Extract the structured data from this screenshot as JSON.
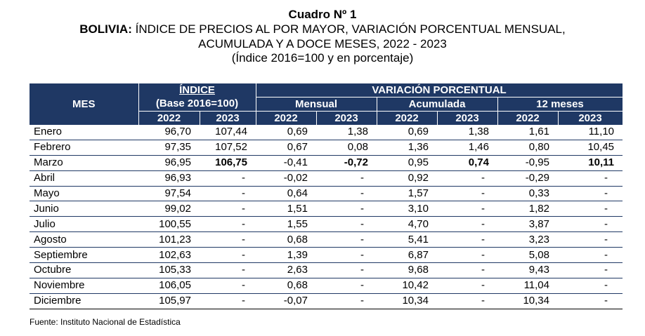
{
  "title": "Cuadro Nº 1",
  "subtitle_bold": "BOLIVIA:",
  "subtitle_rest": " ÍNDICE DE PRECIOS AL POR MAYOR, VARIACIÓN PORCENTUAL MENSUAL,",
  "subtitle_line2": "ACUMULADA Y A DOCE MESES, 2022 - 2023",
  "subtitle_line3": "(Índice 2016=100 y en porcentaje)",
  "header": {
    "mes": "MES",
    "indice": "ÍNDICE",
    "base": "(Base 2016=100)",
    "variacion": "VARIACIÓN PORCENTUAL",
    "mensual": "Mensual",
    "acumulada": "Acumulada",
    "doce_meses": "12 meses",
    "y2022": "2022",
    "y2023": "2023"
  },
  "rows": [
    {
      "mes": "Enero",
      "i22": "96,70",
      "i23": "107,44",
      "m22": "0,69",
      "m23": "1,38",
      "a22": "0,69",
      "a23": "1,38",
      "d22": "1,61",
      "d23": "11,10"
    },
    {
      "mes": "Febrero",
      "i22": "97,35",
      "i23": "107,52",
      "m22": "0,67",
      "m23": "0,08",
      "a22": "1,36",
      "a23": "1,46",
      "d22": "0,80",
      "d23": "10,45"
    },
    {
      "mes": "Marzo",
      "i22": "96,95",
      "i23": "106,75",
      "m22": "-0,41",
      "m23": "-0,72",
      "a22": "0,95",
      "a23": "0,74",
      "d22": "-0,95",
      "d23": "10,11"
    },
    {
      "mes": "Abril",
      "i22": "96,93",
      "i23": "-",
      "m22": "-0,02",
      "m23": "-",
      "a22": "0,92",
      "a23": "-",
      "d22": "-0,29",
      "d23": "-"
    },
    {
      "mes": "Mayo",
      "i22": "97,54",
      "i23": "-",
      "m22": "0,64",
      "m23": "-",
      "a22": "1,57",
      "a23": "-",
      "d22": "0,33",
      "d23": "-"
    },
    {
      "mes": "Junio",
      "i22": "99,02",
      "i23": "-",
      "m22": "1,51",
      "m23": "-",
      "a22": "3,10",
      "a23": "-",
      "d22": "1,82",
      "d23": "-"
    },
    {
      "mes": "Julio",
      "i22": "100,55",
      "i23": "-",
      "m22": "1,55",
      "m23": "-",
      "a22": "4,70",
      "a23": "-",
      "d22": "3,87",
      "d23": "-"
    },
    {
      "mes": "Agosto",
      "i22": "101,23",
      "i23": "-",
      "m22": "0,68",
      "m23": "-",
      "a22": "5,41",
      "a23": "-",
      "d22": "3,23",
      "d23": "-"
    },
    {
      "mes": "Septiembre",
      "i22": "102,63",
      "i23": "-",
      "m22": "1,39",
      "m23": "-",
      "a22": "6,87",
      "a23": "-",
      "d22": "5,08",
      "d23": "-"
    },
    {
      "mes": "Octubre",
      "i22": "105,33",
      "i23": "-",
      "m22": "2,63",
      "m23": "-",
      "a22": "9,68",
      "a23": "-",
      "d22": "9,43",
      "d23": "-"
    },
    {
      "mes": "Noviembre",
      "i22": "106,05",
      "i23": "-",
      "m22": "0,68",
      "m23": "-",
      "a22": "10,42",
      "a23": "-",
      "d22": "11,04",
      "d23": "-"
    },
    {
      "mes": "Diciembre",
      "i22": "105,97",
      "i23": "-",
      "m22": "-0,07",
      "m23": "-",
      "a22": "10,34",
      "a23": "-",
      "d22": "10,34",
      "d23": "-"
    }
  ],
  "source": "Fuente: Instituto Nacional de Estadística",
  "colors": {
    "header_bg": "#1f3864"
  }
}
